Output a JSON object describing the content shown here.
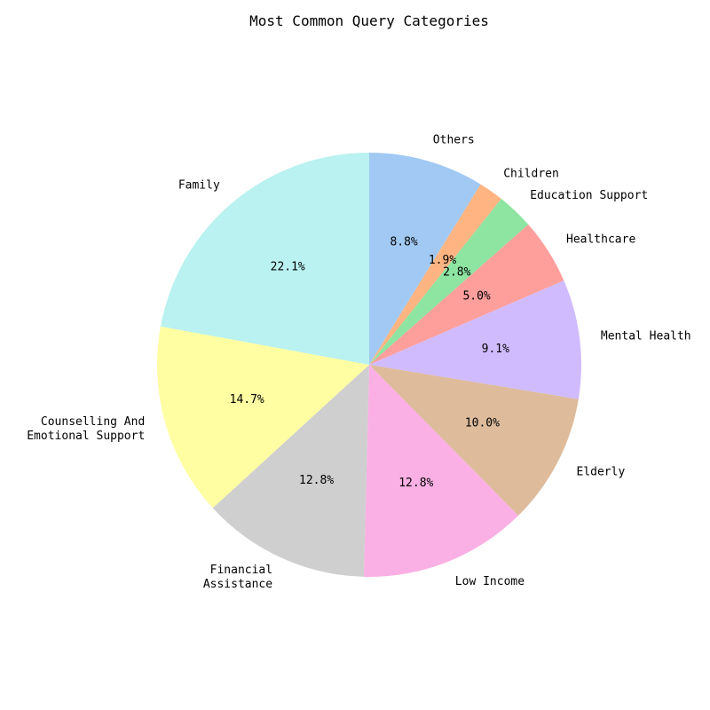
{
  "chart_data": {
    "type": "pie",
    "title": "Most Common Query Categories",
    "slices": [
      {
        "label": "Others",
        "value": 8.8,
        "pct_label": "8.8%",
        "color": "#a1c9f4"
      },
      {
        "label": "Children",
        "value": 1.9,
        "pct_label": "1.9%",
        "color": "#ffb482"
      },
      {
        "label": "Education Support",
        "value": 2.8,
        "pct_label": "2.8%",
        "color": "#8de5a1"
      },
      {
        "label": "Healthcare",
        "value": 5.0,
        "pct_label": "5.0%",
        "color": "#ff9f9b"
      },
      {
        "label": "Mental Health",
        "value": 9.1,
        "pct_label": "9.1%",
        "color": "#d0bbff"
      },
      {
        "label": "Elderly",
        "value": 10.0,
        "pct_label": "10.0%",
        "color": "#debb9b"
      },
      {
        "label": "Low Income",
        "value": 12.8,
        "pct_label": "12.8%",
        "color": "#fab0e4"
      },
      {
        "label": "Financial Assistance",
        "value": 12.8,
        "pct_label": "12.8%",
        "color": "#cfcfcf"
      },
      {
        "label": "Counselling And Emotional Support",
        "value": 14.7,
        "pct_label": "14.7%",
        "color": "#fffea3"
      },
      {
        "label": "Family",
        "value": 22.1,
        "pct_label": "22.1%",
        "color": "#b9f2f0"
      }
    ],
    "start_angle": 90,
    "direction": "clockwise",
    "legend": "none"
  }
}
